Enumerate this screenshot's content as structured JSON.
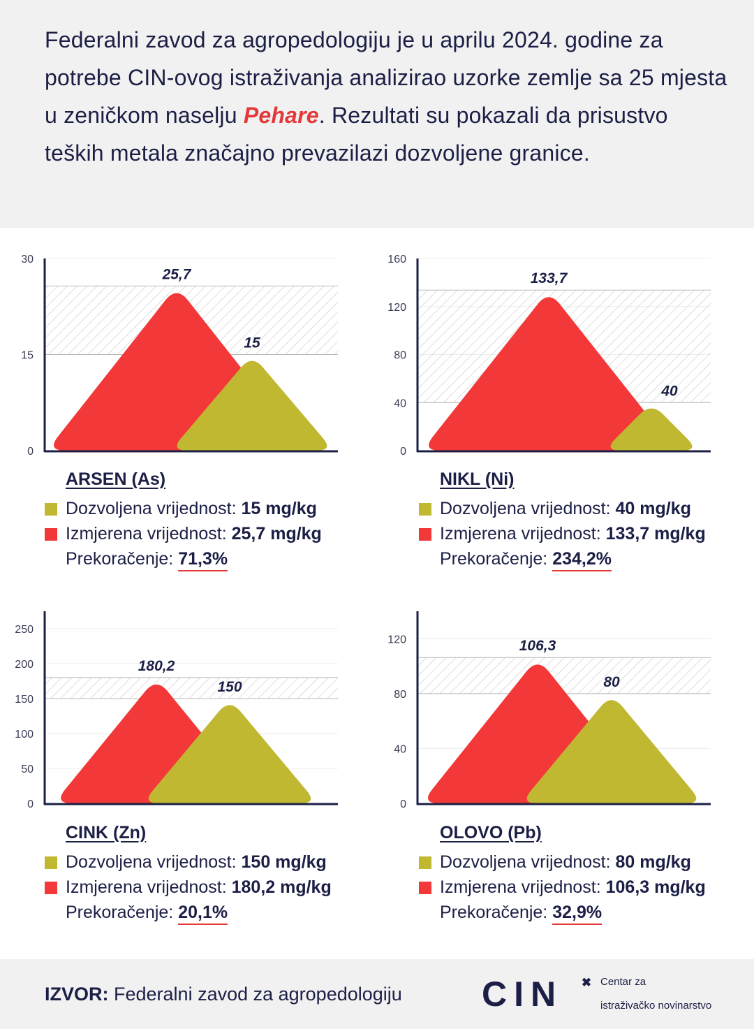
{
  "intro": {
    "text_before": "Federalni zavod za agropedologiju je u aprilu 2024. godine za potrebe CIN-ovog istraživanja analizirao uzorke zemlje sa 25 mjesta u zeničkom naselju ",
    "highlight": "Pehare",
    "text_after": ". Rezultati su pokazali da prisustvo teških metala značajno prevazilazi dozvoljene granice."
  },
  "colors": {
    "measured": "#f23838",
    "allowed": "#c1b832",
    "axis": "#1b1f45",
    "label": "#1b1f45",
    "accent": "#e63838"
  },
  "labels": {
    "allowed": "Dozvoljena vrijednost: ",
    "measured": "Izmjerena vrijednost: ",
    "excess": "Prekoračenje: "
  },
  "chart_data": [
    {
      "type": "area",
      "title": "ARSEN (As)",
      "unit": "mg/kg",
      "ylim": [
        0,
        30
      ],
      "yticks": [
        0,
        15,
        30
      ],
      "measured": 25.7,
      "measured_label": "25,7",
      "allowed": 15,
      "allowed_label": "15",
      "allowed_text": "15 mg/kg",
      "measured_text": "25,7 mg/kg",
      "excess": "71,3%"
    },
    {
      "type": "area",
      "title": "NIKL (Ni)",
      "unit": "mg/kg",
      "ylim": [
        0,
        160
      ],
      "yticks": [
        0,
        40,
        80,
        120,
        160
      ],
      "measured": 133.7,
      "measured_label": "133,7",
      "allowed": 40,
      "allowed_label": "40",
      "allowed_text": "40 mg/kg",
      "measured_text": "133,7 mg/kg",
      "excess": "234,2%"
    },
    {
      "type": "area",
      "title": "CINK (Zn)",
      "unit": "mg/kg",
      "ylim": [
        0,
        275
      ],
      "yticks": [
        0,
        50,
        100,
        150,
        200,
        250
      ],
      "measured": 180.2,
      "measured_label": "180,2",
      "allowed": 150,
      "allowed_label": "150",
      "allowed_text": "150 mg/kg",
      "measured_text": "180,2 mg/kg",
      "excess": "20,1%"
    },
    {
      "type": "area",
      "title": "OLOVO (Pb)",
      "unit": "mg/kg",
      "ylim": [
        0,
        140
      ],
      "yticks": [
        0,
        40,
        80,
        120
      ],
      "measured": 106.3,
      "measured_label": "106,3",
      "allowed": 80,
      "allowed_label": "80",
      "allowed_text": "80 mg/kg",
      "measured_text": "106,3 mg/kg",
      "excess": "32,9%"
    }
  ],
  "footer": {
    "source_label": "IZVOR:",
    "source_text": " Federalni zavod za agropedologiju",
    "logo": "CIN",
    "logo_icon": "x-cross-icon",
    "logo_line1": "Centar za",
    "logo_line2": "istraživačko novinarstvo"
  }
}
